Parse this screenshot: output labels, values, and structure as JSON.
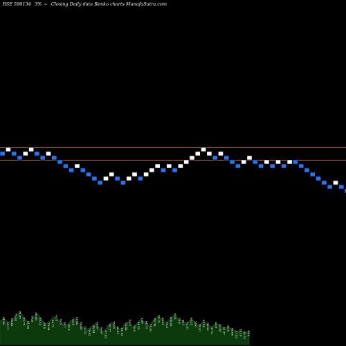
{
  "header": {
    "symbol": "BSE 590134",
    "change": "3%",
    "arrow": "~",
    "description": "Closing Daily data  Renko  charts MunafaSutra.com"
  },
  "chart_data": {
    "type": "renko",
    "brick_colors": {
      "up": "#ffffff",
      "down": "#1e78ff"
    },
    "reference_line_color": "#c8641e",
    "reference_levels": [
      1,
      -1
    ],
    "volume_area_color": "#0c3a0c",
    "bricks": [
      {
        "level": 0,
        "dir": "down"
      },
      {
        "level": 1,
        "dir": "up"
      },
      {
        "level": 0,
        "dir": "down"
      },
      {
        "level": -1,
        "dir": "down"
      },
      {
        "level": 0,
        "dir": "up"
      },
      {
        "level": 1,
        "dir": "up"
      },
      {
        "level": 0,
        "dir": "down"
      },
      {
        "level": -1,
        "dir": "down"
      },
      {
        "level": 0,
        "dir": "up"
      },
      {
        "level": -1,
        "dir": "down"
      },
      {
        "level": -2,
        "dir": "down"
      },
      {
        "level": -3,
        "dir": "down"
      },
      {
        "level": -4,
        "dir": "down"
      },
      {
        "level": -3,
        "dir": "up"
      },
      {
        "level": -4,
        "dir": "down"
      },
      {
        "level": -5,
        "dir": "down"
      },
      {
        "level": -6,
        "dir": "down"
      },
      {
        "level": -7,
        "dir": "down"
      },
      {
        "level": -6,
        "dir": "up"
      },
      {
        "level": -5,
        "dir": "up"
      },
      {
        "level": -6,
        "dir": "down"
      },
      {
        "level": -7,
        "dir": "down"
      },
      {
        "level": -6,
        "dir": "up"
      },
      {
        "level": -5,
        "dir": "up"
      },
      {
        "level": -6,
        "dir": "down"
      },
      {
        "level": -5,
        "dir": "up"
      },
      {
        "level": -4,
        "dir": "up"
      },
      {
        "level": -3,
        "dir": "up"
      },
      {
        "level": -4,
        "dir": "down"
      },
      {
        "level": -3,
        "dir": "up"
      },
      {
        "level": -4,
        "dir": "down"
      },
      {
        "level": -3,
        "dir": "up"
      },
      {
        "level": -2,
        "dir": "up"
      },
      {
        "level": -1,
        "dir": "up"
      },
      {
        "level": 0,
        "dir": "up"
      },
      {
        "level": 1,
        "dir": "up"
      },
      {
        "level": 0,
        "dir": "up"
      },
      {
        "level": -1,
        "dir": "down"
      },
      {
        "level": 0,
        "dir": "up"
      },
      {
        "level": -1,
        "dir": "down"
      },
      {
        "level": -2,
        "dir": "down"
      },
      {
        "level": -3,
        "dir": "down"
      },
      {
        "level": -2,
        "dir": "up"
      },
      {
        "level": -1,
        "dir": "up"
      },
      {
        "level": -2,
        "dir": "down"
      },
      {
        "level": -3,
        "dir": "down"
      },
      {
        "level": -2,
        "dir": "up"
      },
      {
        "level": -3,
        "dir": "down"
      },
      {
        "level": -2,
        "dir": "up"
      },
      {
        "level": -3,
        "dir": "down"
      },
      {
        "level": -2,
        "dir": "up"
      },
      {
        "level": -2,
        "dir": "down"
      },
      {
        "level": -3,
        "dir": "down"
      },
      {
        "level": -4,
        "dir": "down"
      },
      {
        "level": -5,
        "dir": "down"
      },
      {
        "level": -6,
        "dir": "down"
      },
      {
        "level": -7,
        "dir": "down"
      },
      {
        "level": -8,
        "dir": "down"
      },
      {
        "level": -7,
        "dir": "up"
      },
      {
        "level": -8,
        "dir": "down"
      },
      {
        "level": -9,
        "dir": "down"
      }
    ],
    "volume_profile": [
      0.55,
      0.62,
      0.5,
      0.58,
      0.7,
      0.75,
      0.6,
      0.52,
      0.64,
      0.72,
      0.6,
      0.48,
      0.55,
      0.66,
      0.58,
      0.5,
      0.44,
      0.56,
      0.62,
      0.5,
      0.4,
      0.35,
      0.42,
      0.5,
      0.38,
      0.3,
      0.45,
      0.52,
      0.4,
      0.36,
      0.48,
      0.55,
      0.42,
      0.5,
      0.6,
      0.52,
      0.45,
      0.58,
      0.66,
      0.6,
      0.5,
      0.62,
      0.7,
      0.6,
      0.55,
      0.5,
      0.6,
      0.52,
      0.45,
      0.55,
      0.48,
      0.4,
      0.5,
      0.45,
      0.38,
      0.42,
      0.36,
      0.3,
      0.34,
      0.28,
      0.3
    ],
    "volume_labels": [
      "64.58",
      "55.11",
      "68.42",
      "75.03",
      "85.62",
      "92.76",
      "81.59",
      "66.8",
      "80.89",
      "68.53",
      "64.8",
      "75.04",
      "55.71",
      "61.8",
      "70.5",
      "56.1",
      "60.9",
      "53.4",
      "51.92",
      "66.85",
      "55.12",
      "79.62",
      "45.44",
      "56.87",
      "60.07",
      "67.85",
      "63.27",
      "75.01",
      "82.41",
      "61.13",
      "72.44",
      "63.5",
      "76.8",
      "58.25",
      "3.36",
      "64.71",
      "70.02",
      "62.39",
      "85.12",
      "90.21",
      "78.3",
      "100.03",
      "65.8",
      "79.9",
      "88.1",
      "73.51",
      "64.21",
      "59.6",
      "80.01",
      "67.45",
      "58.33",
      "70.72",
      "55.9",
      "63.44",
      "61.27",
      "52.8",
      "48.66",
      "57.03",
      "55.19",
      "50.72",
      "44.9"
    ]
  }
}
